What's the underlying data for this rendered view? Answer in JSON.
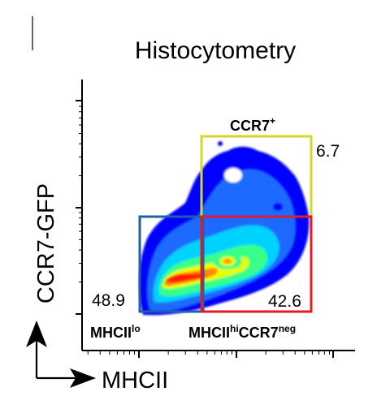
{
  "chart_data": {
    "type": "heatmap",
    "title": "Histocytometry",
    "xlabel": "MHCII",
    "ylabel": "CCR7-GFP",
    "scale": "log",
    "colormap": [
      "#0000ff",
      "#1f6bff",
      "#00d2ff",
      "#39ff8a",
      "#e8ff00",
      "#ff8a00",
      "#ff1a00"
    ],
    "gates": [
      {
        "id": "mhcii-lo",
        "name": "MHCII",
        "name_sup": "lo",
        "name_sub": "",
        "percent": "48.9",
        "color": "#1f5fa8"
      },
      {
        "id": "mhcii-hi-ccr7-neg",
        "name": "MHCII",
        "name_sup": "hi",
        "name2": "CCR7",
        "name2_sup": "neg",
        "percent": "42.6",
        "color": "#e31b23"
      },
      {
        "id": "ccr7-pos",
        "name": "CCR7",
        "name_sup": "+",
        "percent": "6.7",
        "color": "#d6d62a"
      }
    ]
  }
}
